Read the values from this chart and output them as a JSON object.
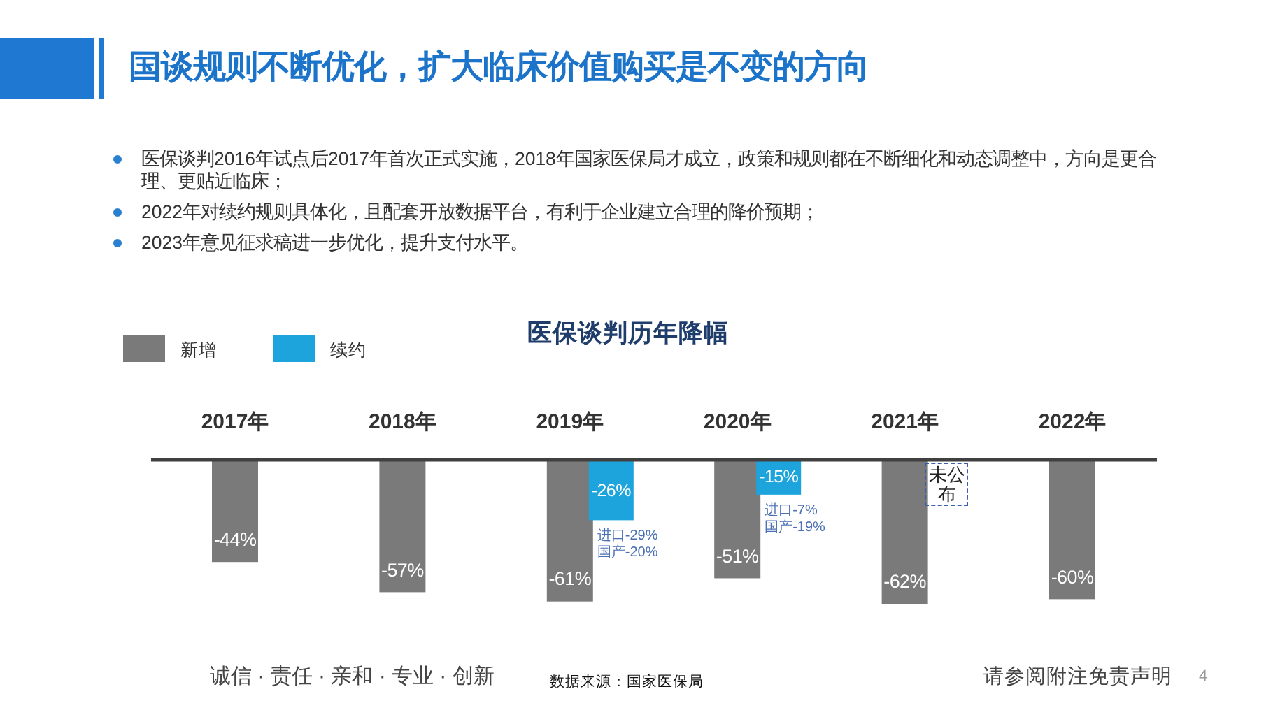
{
  "chart_data": {
    "type": "bar",
    "title": "国谈规则不断优化，扩大临床价值购买是不变的方向",
    "subtitle": "医保谈判历年降幅",
    "categories": [
      "2017年",
      "2018年",
      "2019年",
      "2020年",
      "2021年",
      "2022年"
    ],
    "series": [
      {
        "name": "新增",
        "color": "#7a7a7a",
        "values": [
          -44,
          -57,
          -61,
          -51,
          -62,
          -60
        ],
        "value_labels": [
          "-44%",
          "-57%",
          "-61%",
          "-51%",
          "-62%",
          "-60%"
        ]
      },
      {
        "name": "续约",
        "color": "#1ea4dc",
        "values": [
          null,
          null,
          -26,
          -15,
          null,
          null
        ],
        "value_labels": [
          null,
          null,
          "-26%",
          "-15%",
          null,
          null
        ]
      }
    ],
    "legend": "top left",
    "annotations": [
      "医保谈判2016年试点后2017年首次正式实施，2018年国家医保局才成立，政策和规则都在不断细化和动态调整中，方向是更合理、更贴近临床；",
      "2022年对续约规则具体化，且配套开放数据平台，有利于企业建立合理的降价预期；",
      "2023年意见征求稿进一步优化，提升支付水平。",
      "诚信 · 责任 · 亲和 · 专业 · 创新",
      "数据来源：国家医保局",
      "请参阅附注免责声明",
      "4",
      "进口-29%",
      "国产-20%",
      "进口-7%",
      "国产-19%",
      "未公布"
    ]
  }
}
